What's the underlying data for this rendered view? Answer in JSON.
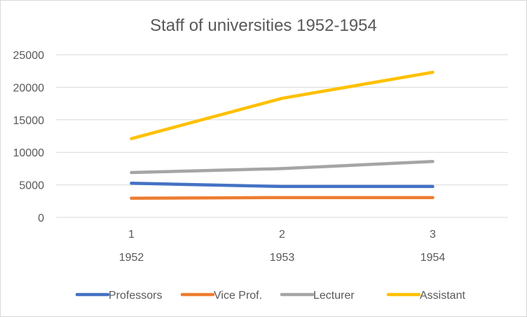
{
  "chart_data": {
    "type": "line",
    "title": "Staff of universities 1952-1954",
    "categories": [
      "1",
      "2",
      "3"
    ],
    "category_sublabels": [
      "1952",
      "1953",
      "1954"
    ],
    "ylim": [
      0,
      25000
    ],
    "yticks": [
      0,
      5000,
      10000,
      15000,
      20000,
      25000
    ],
    "grid": true,
    "legend_position": "bottom",
    "series": [
      {
        "name": "Professors",
        "values": [
          5250,
          4750,
          4750
        ],
        "color": "#4472C4"
      },
      {
        "name": "Vice Prof.",
        "values": [
          2950,
          3050,
          3050
        ],
        "color": "#ED7D31"
      },
      {
        "name": "Lecturer",
        "values": [
          6900,
          7500,
          8600
        ],
        "color": "#A5A5A5"
      },
      {
        "name": "Assistant",
        "values": [
          12100,
          18300,
          22300
        ],
        "color": "#FFC000"
      }
    ]
  }
}
